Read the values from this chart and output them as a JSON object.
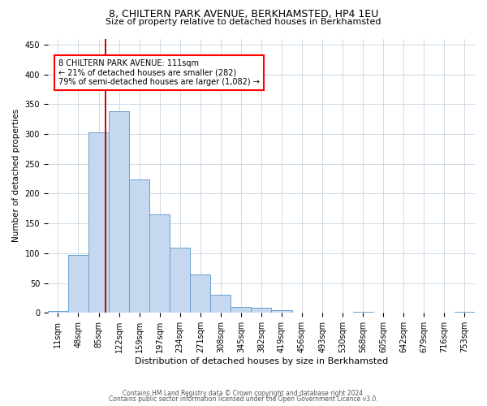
{
  "title1": "8, CHILTERN PARK AVENUE, BERKHAMSTED, HP4 1EU",
  "title2": "Size of property relative to detached houses in Berkhamsted",
  "xlabel": "Distribution of detached houses by size in Berkhamsted",
  "ylabel": "Number of detached properties",
  "bin_labels": [
    "11sqm",
    "48sqm",
    "85sqm",
    "122sqm",
    "159sqm",
    "197sqm",
    "234sqm",
    "271sqm",
    "308sqm",
    "345sqm",
    "382sqm",
    "419sqm",
    "456sqm",
    "493sqm",
    "530sqm",
    "568sqm",
    "605sqm",
    "642sqm",
    "679sqm",
    "716sqm",
    "753sqm"
  ],
  "bar_heights": [
    3,
    97,
    303,
    338,
    224,
    165,
    109,
    65,
    31,
    10,
    8,
    5,
    1,
    1,
    0,
    2,
    0,
    0,
    0,
    0,
    2
  ],
  "bar_color": "#c5d8ef",
  "bar_edgecolor": "#6aa0cc",
  "bar_linewidth": 0.7,
  "vline_x": 2.85,
  "vline_color": "#cc0000",
  "vline_linewidth": 1.4,
  "annotation_line1": "8 CHILTERN PARK AVENUE: 111sqm",
  "annotation_line2": "← 21% of detached houses are smaller (282)",
  "annotation_line3": "79% of semi-detached houses are larger (1,082) →",
  "ylim": [
    0,
    460
  ],
  "yticks": [
    0,
    50,
    100,
    150,
    200,
    250,
    300,
    350,
    400,
    450
  ],
  "footer1": "Contains HM Land Registry data © Crown copyright and database right 2024.",
  "footer2": "Contains public sector information licensed under the Open Government Licence v3.0.",
  "bg_color": "#ffffff",
  "grid_color": "#c8d4e0",
  "title1_fontsize": 9,
  "title2_fontsize": 8,
  "xlabel_fontsize": 8,
  "ylabel_fontsize": 7.5,
  "tick_fontsize": 7,
  "annot_fontsize": 7,
  "footer_fontsize": 5.5
}
